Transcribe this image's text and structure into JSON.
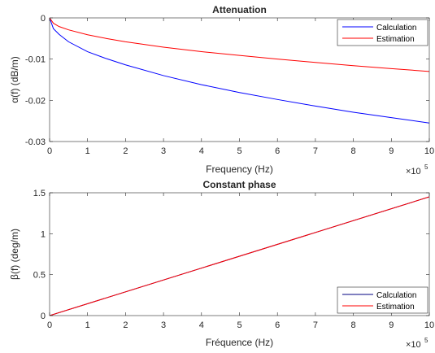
{
  "chart_data": [
    {
      "type": "line",
      "title": "Attenuation",
      "xlabel": "Frequency (Hz)",
      "ylabel": "α(f) (dB/m)",
      "x_exponent_label": "×10",
      "x_exponent_power": "5",
      "xlim": [
        0,
        1000000
      ],
      "ylim": [
        -0.03,
        0
      ],
      "xticks": [
        0,
        100000,
        200000,
        300000,
        400000,
        500000,
        600000,
        700000,
        800000,
        900000,
        1000000
      ],
      "xtick_labels": [
        "0",
        "1",
        "2",
        "3",
        "4",
        "5",
        "6",
        "7",
        "8",
        "9",
        "10"
      ],
      "yticks": [
        0,
        -0.01,
        -0.02,
        -0.03
      ],
      "ytick_labels": [
        "0",
        "-0.01",
        "-0.02",
        "-0.03"
      ],
      "grid": false,
      "legend_position": "top-right",
      "series": [
        {
          "name": "Calculation",
          "color": "#0000ff",
          "x": [
            0,
            10000,
            25000,
            50000,
            100000,
            150000,
            200000,
            300000,
            400000,
            500000,
            600000,
            700000,
            800000,
            900000,
            1000000
          ],
          "y": [
            0,
            -0.0026,
            -0.004,
            -0.0058,
            -0.0082,
            -0.0099,
            -0.0114,
            -0.014,
            -0.0162,
            -0.0181,
            -0.0198,
            -0.0214,
            -0.0229,
            -0.0242,
            -0.0255
          ]
        },
        {
          "name": "Estimation",
          "color": "#ff0000",
          "x": [
            0,
            10000,
            25000,
            50000,
            100000,
            150000,
            200000,
            300000,
            400000,
            500000,
            600000,
            700000,
            800000,
            900000,
            1000000
          ],
          "y": [
            0,
            -0.0013,
            -0.0021,
            -0.0029,
            -0.0041,
            -0.005,
            -0.0058,
            -0.0071,
            -0.0082,
            -0.0091,
            -0.01,
            -0.0108,
            -0.0116,
            -0.0123,
            -0.013
          ]
        }
      ]
    },
    {
      "type": "line",
      "title": "Constant phase",
      "xlabel": "Fréquence (Hz)",
      "ylabel": "β(f) (deg/m)",
      "x_exponent_label": "×10",
      "x_exponent_power": "5",
      "xlim": [
        0,
        1000000
      ],
      "ylim": [
        0,
        1.5
      ],
      "xticks": [
        0,
        100000,
        200000,
        300000,
        400000,
        500000,
        600000,
        700000,
        800000,
        900000,
        1000000
      ],
      "xtick_labels": [
        "0",
        "1",
        "2",
        "3",
        "4",
        "5",
        "6",
        "7",
        "8",
        "9",
        "10"
      ],
      "yticks": [
        0,
        0.5,
        1,
        1.5
      ],
      "ytick_labels": [
        "0",
        "0.5",
        "1",
        "1.5"
      ],
      "grid": false,
      "legend_position": "bottom-right",
      "series": [
        {
          "name": "Calculation",
          "color": "#000080",
          "x": [
            0,
            1000000
          ],
          "y": [
            0,
            1.45
          ]
        },
        {
          "name": "Estimation",
          "color": "#ff0000",
          "x": [
            0,
            1000000
          ],
          "y": [
            0,
            1.45
          ]
        }
      ]
    }
  ]
}
